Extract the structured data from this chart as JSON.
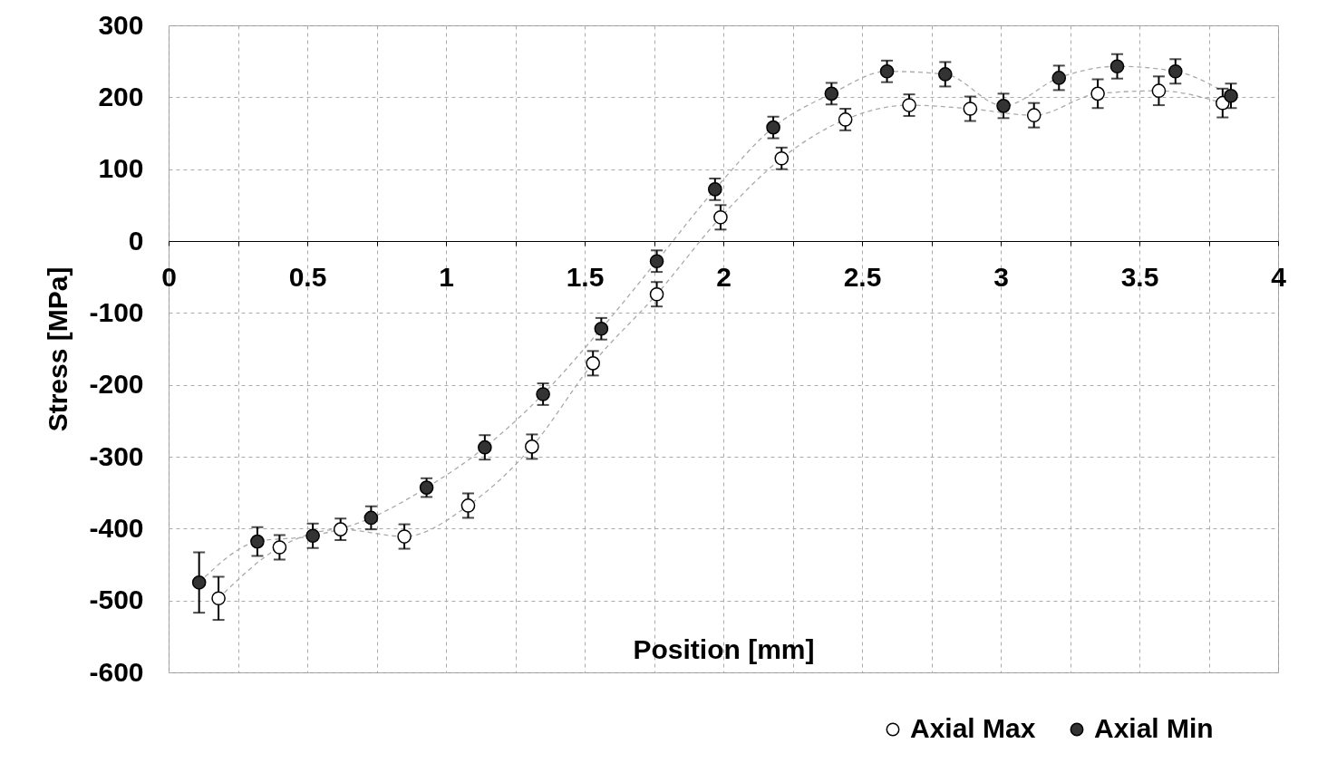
{
  "chart_data": {
    "type": "line",
    "xlabel": "Position [mm]",
    "ylabel": "Stress [MPa]",
    "xlim": [
      0,
      4
    ],
    "xticks": [
      0,
      {
        "value": 0.25,
        "label": null
      },
      0.5,
      {
        "value": 0.75,
        "label": null
      },
      1,
      {
        "value": 1.25,
        "label": null
      },
      1.5,
      {
        "value": 1.75,
        "label": null
      },
      2,
      {
        "value": 2.25,
        "label": null
      },
      2.5,
      {
        "value": 2.75,
        "label": null
      },
      3,
      {
        "value": 3.25,
        "label": null
      },
      3.5,
      {
        "value": 3.75,
        "label": null
      },
      4
    ],
    "ylim": [
      -600,
      300
    ],
    "yticks": [
      -600,
      -500,
      -400,
      -300,
      -200,
      -100,
      0,
      100,
      200,
      300
    ],
    "grid": true,
    "legend": "bottom right",
    "marker": "circle",
    "line_style": "dashed",
    "series": [
      {
        "name": "Axial Max",
        "color": "#ffffff",
        "x": [
          0.18,
          0.4,
          0.62,
          0.85,
          1.08,
          1.31,
          1.53,
          1.76,
          1.99,
          2.21,
          2.44,
          2.67,
          2.89,
          3.12,
          3.35,
          3.57,
          3.8
        ],
        "values": [
          -497,
          -426,
          -401,
          -411,
          -368,
          -286,
          -170,
          -74,
          33,
          115,
          169,
          189,
          184,
          175,
          205,
          209,
          192
        ],
        "errors": [
          30,
          17,
          15,
          17,
          17,
          17,
          17,
          17,
          17,
          15,
          15,
          15,
          17,
          17,
          20,
          20,
          20
        ]
      },
      {
        "name": "Axial Min",
        "color": "#333333",
        "x": [
          0.11,
          0.32,
          0.52,
          0.73,
          0.93,
          1.14,
          1.35,
          1.56,
          1.76,
          1.97,
          2.18,
          2.39,
          2.59,
          2.8,
          3.01,
          3.21,
          3.42,
          3.63,
          3.83
        ],
        "values": [
          -475,
          -418,
          -410,
          -385,
          -343,
          -287,
          -213,
          -122,
          -28,
          72,
          158,
          205,
          236,
          232,
          188,
          227,
          243,
          236,
          202
        ],
        "errors": [
          42,
          20,
          17,
          16,
          13,
          17,
          15,
          15,
          15,
          15,
          15,
          15,
          15,
          17,
          17,
          17,
          17,
          17,
          17
        ]
      }
    ]
  }
}
